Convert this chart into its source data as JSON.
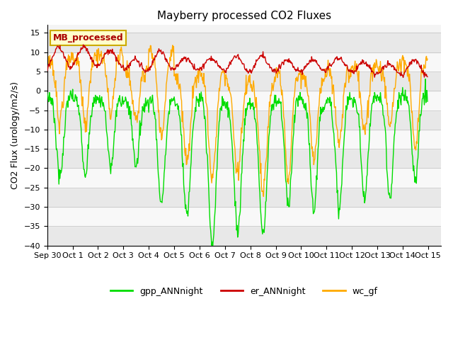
{
  "title": "Mayberry processed CO2 Fluxes",
  "ylabel": "CO2 Flux (urology/m2/s)",
  "ylim": [
    -40,
    17
  ],
  "yticks": [
    -40,
    -35,
    -30,
    -25,
    -20,
    -15,
    -10,
    -5,
    0,
    5,
    10,
    15
  ],
  "n_days": 15,
  "pts_per_day": 48,
  "legend_labels": [
    "gpp_ANNnight",
    "er_ANNnight",
    "wc_gf"
  ],
  "line_colors": [
    "#00dd00",
    "#cc0000",
    "#ffaa00"
  ],
  "annotation_text": "MB_processed",
  "annotation_color": "#aa0000",
  "annotation_bg": "#ffffcc",
  "annotation_border": "#ccaa00",
  "background_color": "#ffffff",
  "stripe_colors": [
    "#e8e8e8",
    "#f8f8f8"
  ],
  "tick_label_dates": [
    "Sep 30",
    "Oct 1",
    "Oct 2",
    "Oct 3",
    "Oct 4",
    "Oct 5",
    "Oct 6",
    "Oct 7",
    "Oct 8",
    "Oct 9",
    "Oct 10",
    "Oct 11",
    "Oct 12",
    "Oct 13",
    "Oct 14",
    "Oct 15"
  ]
}
